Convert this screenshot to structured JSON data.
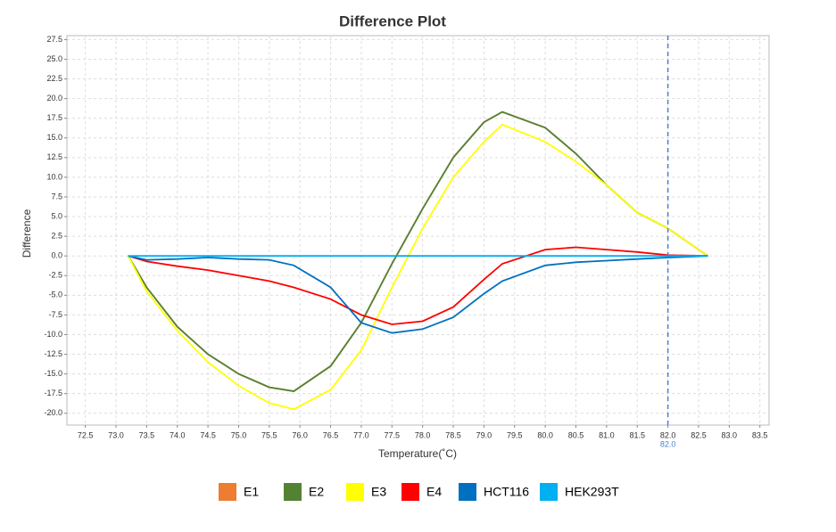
{
  "chart_data": {
    "type": "line",
    "title": "Difference Plot",
    "x_label": "Temperature(˚C)",
    "y_label": "Difference",
    "x": [
      73.2,
      73.5,
      74.0,
      74.5,
      75.0,
      75.5,
      75.9,
      76.5,
      77.0,
      77.5,
      78.0,
      78.5,
      79.0,
      79.3,
      80.0,
      80.5,
      81.0,
      81.5,
      82.0,
      82.65
    ],
    "series": [
      {
        "name": "E1",
        "color": "#ed7d31",
        "values": [
          0,
          -4,
          -9,
          -12.5,
          -15,
          -16.7,
          -17.2,
          -14,
          -8.5,
          -1,
          6,
          12.5,
          17,
          18.3,
          16.3,
          13,
          9,
          5.5,
          3.5,
          0
        ]
      },
      {
        "name": "E2",
        "color": "#548235",
        "values": [
          0,
          -4,
          -9,
          -12.5,
          -15,
          -16.7,
          -17.2,
          -14,
          -8.5,
          -1,
          6,
          12.5,
          17,
          18.3,
          16.3,
          13,
          9,
          5.5,
          3.5,
          0
        ]
      },
      {
        "name": "E3",
        "color": "#ffff00",
        "values": [
          0,
          -4.5,
          -9.5,
          -13.5,
          -16.5,
          -18.7,
          -19.5,
          -17,
          -12,
          -4,
          3.5,
          10,
          14.5,
          16.7,
          14.5,
          12,
          9,
          5.5,
          3.5,
          0
        ]
      },
      {
        "name": "E4",
        "color": "#ff0000",
        "values": [
          0,
          -0.7,
          -1.3,
          -1.8,
          -2.5,
          -3.2,
          -4,
          -5.5,
          -7.5,
          -8.7,
          -8.3,
          -6.5,
          -3,
          -1,
          0.8,
          1.1,
          0.8,
          0.5,
          0.1,
          0
        ]
      },
      {
        "name": "HCT116",
        "color": "#0070c0",
        "values": [
          0,
          -0.5,
          -0.4,
          -0.2,
          -0.4,
          -0.5,
          -1.2,
          -4,
          -8.5,
          -9.8,
          -9.3,
          -7.8,
          -4.8,
          -3.2,
          -1.2,
          -0.8,
          -0.6,
          -0.4,
          -0.2,
          0
        ]
      },
      {
        "name": "HEK293T",
        "color": "#00b0f0",
        "values": [
          0,
          0,
          0,
          0,
          0,
          0,
          0,
          0,
          0,
          0,
          0,
          0,
          0,
          0,
          0,
          0,
          0,
          0,
          0,
          0
        ]
      }
    ],
    "xlim": [
      72.2,
      83.65
    ],
    "ylim": [
      -21.5,
      28
    ],
    "xticks": [
      72.5,
      {
        "value": 73,
        "label": "73.0"
      },
      73.5,
      {
        "value": 74,
        "label": "74.0"
      },
      74.5,
      {
        "value": 75,
        "label": "75.0"
      },
      75.5,
      {
        "value": 76,
        "label": "76.0"
      },
      76.5,
      {
        "value": 77,
        "label": "77.0"
      },
      77.5,
      {
        "value": 78,
        "label": "78.0"
      },
      78.5,
      {
        "value": 79,
        "label": "79.0"
      },
      79.5,
      {
        "value": 80,
        "label": "80.0"
      },
      80.5,
      {
        "value": 81,
        "label": "81.0"
      },
      81.5,
      {
        "value": 82,
        "label": "82.0"
      },
      82.5,
      {
        "value": 83,
        "label": "83.0"
      },
      83.5
    ],
    "yticks": [
      27.5,
      {
        "value": 25,
        "label": "25.0"
      },
      22.5,
      {
        "value": 20,
        "label": "20.0"
      },
      17.5,
      {
        "value": 15,
        "label": "15.0"
      },
      12.5,
      {
        "value": 10,
        "label": "10.0"
      },
      7.5,
      {
        "value": 5,
        "label": "5.0"
      },
      2.5,
      {
        "value": 0,
        "label": "0.0"
      },
      -2.5,
      {
        "value": -5,
        "label": "-5.0"
      },
      -7.5,
      {
        "value": -10,
        "label": "-10.0"
      },
      -12.5,
      {
        "value": -15,
        "label": "-15.0"
      },
      -17.5,
      {
        "value": -20,
        "label": "-20.0"
      }
    ],
    "cursor": {
      "value": 82,
      "label": "82.0"
    },
    "grid": true
  }
}
